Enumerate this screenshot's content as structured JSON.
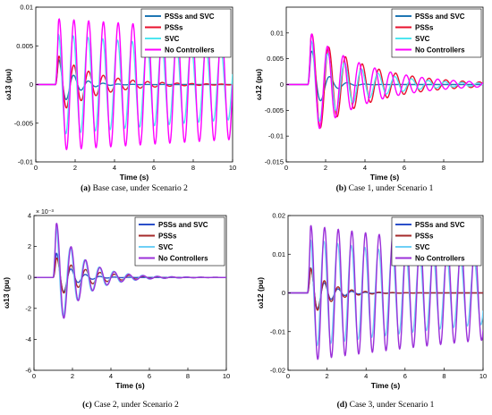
{
  "chart_data": [
    {
      "type": "line",
      "caption_label": "(a)",
      "caption_text": " Base case, under Scenario 2",
      "xlabel": "Time (s)",
      "ylabel": "ω13 (pu)",
      "xlim": [
        0,
        10
      ],
      "ylim": [
        -0.01,
        0.01
      ],
      "xticks": [
        0,
        2,
        4,
        6,
        8,
        10
      ],
      "yticks": [
        -0.01,
        -0.005,
        0,
        0.005,
        0.01
      ],
      "ytick_labels": [
        "-0.01",
        "-0.005",
        "0",
        "0.005",
        "0.01"
      ],
      "exponent_label": "",
      "legend_position": "top-right",
      "grid": false,
      "series": [
        {
          "name": "PSSs and SVC",
          "color": "#1f77b4",
          "amplitude": 0.004,
          "decay": 1.3,
          "period": 0.75,
          "phase": 0
        },
        {
          "name": "PSSs",
          "color": "#e8112d",
          "amplitude": 0.004,
          "decay": 0.5,
          "period": 0.75,
          "phase": 0
        },
        {
          "name": "SVC",
          "color": "#4ee6f0",
          "amplitude": 0.0065,
          "decay": 0.04,
          "period": 0.75,
          "phase": 0.3
        },
        {
          "name": "No Controllers",
          "color": "#ff00ff",
          "amplitude": 0.0085,
          "decay": 0.02,
          "period": 0.75,
          "phase": 0
        }
      ],
      "t_start": 1.0
    },
    {
      "type": "line",
      "caption_label": "(b)",
      "caption_text": " Case 1, under Scenario 1",
      "xlabel": "Time (s)",
      "ylabel": "ω12 (pu)",
      "xlim": [
        0,
        10
      ],
      "ylim": [
        -0.015,
        0.015
      ],
      "xticks": [
        0,
        2,
        4,
        6,
        8
      ],
      "yticks": [
        -0.015,
        -0.01,
        -0.005,
        0,
        0.005,
        0.01
      ],
      "ytick_labels": [
        "-0.015",
        "-0.01",
        "-0.005",
        "0",
        "0.005",
        "0.01"
      ],
      "exponent_label": "",
      "legend_position": "top-right",
      "grid": false,
      "series": [
        {
          "name": "PSSs and SVC",
          "color": "#1f77b4",
          "amplitude": 0.009,
          "decay": 1.6,
          "period": 0.9,
          "phase": 0
        },
        {
          "name": "PSSs",
          "color": "#e8112d",
          "amplitude": 0.0105,
          "decay": 0.35,
          "period": 0.85,
          "phase": 0
        },
        {
          "name": "SVC",
          "color": "#4ee6f0",
          "amplitude": 0.009,
          "decay": 0.4,
          "period": 0.85,
          "phase": 0.3
        },
        {
          "name": "No Controllers",
          "color": "#ff00ff",
          "amplitude": 0.0105,
          "decay": 0.35,
          "period": 0.8,
          "phase": 0
        }
      ],
      "t_start": 1.1
    },
    {
      "type": "line",
      "caption_label": "(c)",
      "caption_text": " Case 2, under Scenario 2",
      "xlabel": "Time (s)",
      "ylabel": "ω13 (pu)",
      "xlim": [
        0,
        10
      ],
      "ylim": [
        -6,
        4
      ],
      "xticks": [
        0,
        2,
        4,
        6,
        8,
        10
      ],
      "yticks": [
        -6,
        -4,
        -2,
        0,
        2,
        4
      ],
      "ytick_labels": [
        "-6",
        "-4",
        "-2",
        "0",
        "2",
        "4"
      ],
      "exponent_label": "× 10⁻³",
      "legend_position": "top-right",
      "grid": false,
      "series": [
        {
          "name": "PSSs and SVC",
          "color": "#2b4fc9",
          "amplitude": 2.0,
          "decay": 1.4,
          "period": 0.75,
          "phase": 0
        },
        {
          "name": "PSSs",
          "color": "#a52a2a",
          "amplitude": 1.4,
          "decay": 0.6,
          "period": 0.75,
          "phase": 0
        },
        {
          "name": "SVC",
          "color": "#6ecff6",
          "amplitude": 3.6,
          "decay": 0.7,
          "period": 0.75,
          "phase": 0.3
        },
        {
          "name": "No Controllers",
          "color": "#9b30d9",
          "amplitude": 4.0,
          "decay": 0.75,
          "period": 0.75,
          "phase": 0
        }
      ],
      "t_start": 1.0
    },
    {
      "type": "line",
      "caption_label": "(d)",
      "caption_text": " Case 3, under Scenario 1",
      "xlabel": "Time (s)",
      "ylabel": "ω12 (pu)",
      "xlim": [
        0,
        10
      ],
      "ylim": [
        -0.02,
        0.02
      ],
      "xticks": [
        0,
        2,
        4,
        6,
        8,
        10
      ],
      "yticks": [
        -0.02,
        -0.01,
        0,
        0.01,
        0.02
      ],
      "ytick_labels": [
        "-0.02",
        "-0.01",
        "0",
        "0.01",
        "0.02"
      ],
      "exponent_label": "",
      "legend_position": "top-right",
      "grid": false,
      "series": [
        {
          "name": "PSSs and SVC",
          "color": "#2b4fc9",
          "amplitude": 0.008,
          "decay": 1.3,
          "period": 0.7,
          "phase": 0
        },
        {
          "name": "PSSs",
          "color": "#a52a2a",
          "amplitude": 0.0075,
          "decay": 1.0,
          "period": 0.7,
          "phase": 0
        },
        {
          "name": "SVC",
          "color": "#6ecff6",
          "amplitude": 0.014,
          "decay": 0.06,
          "period": 0.7,
          "phase": 0.3
        },
        {
          "name": "No Controllers",
          "color": "#9b30d9",
          "amplitude": 0.0175,
          "decay": 0.04,
          "period": 0.7,
          "phase": 0
        }
      ],
      "t_start": 1.0
    }
  ]
}
